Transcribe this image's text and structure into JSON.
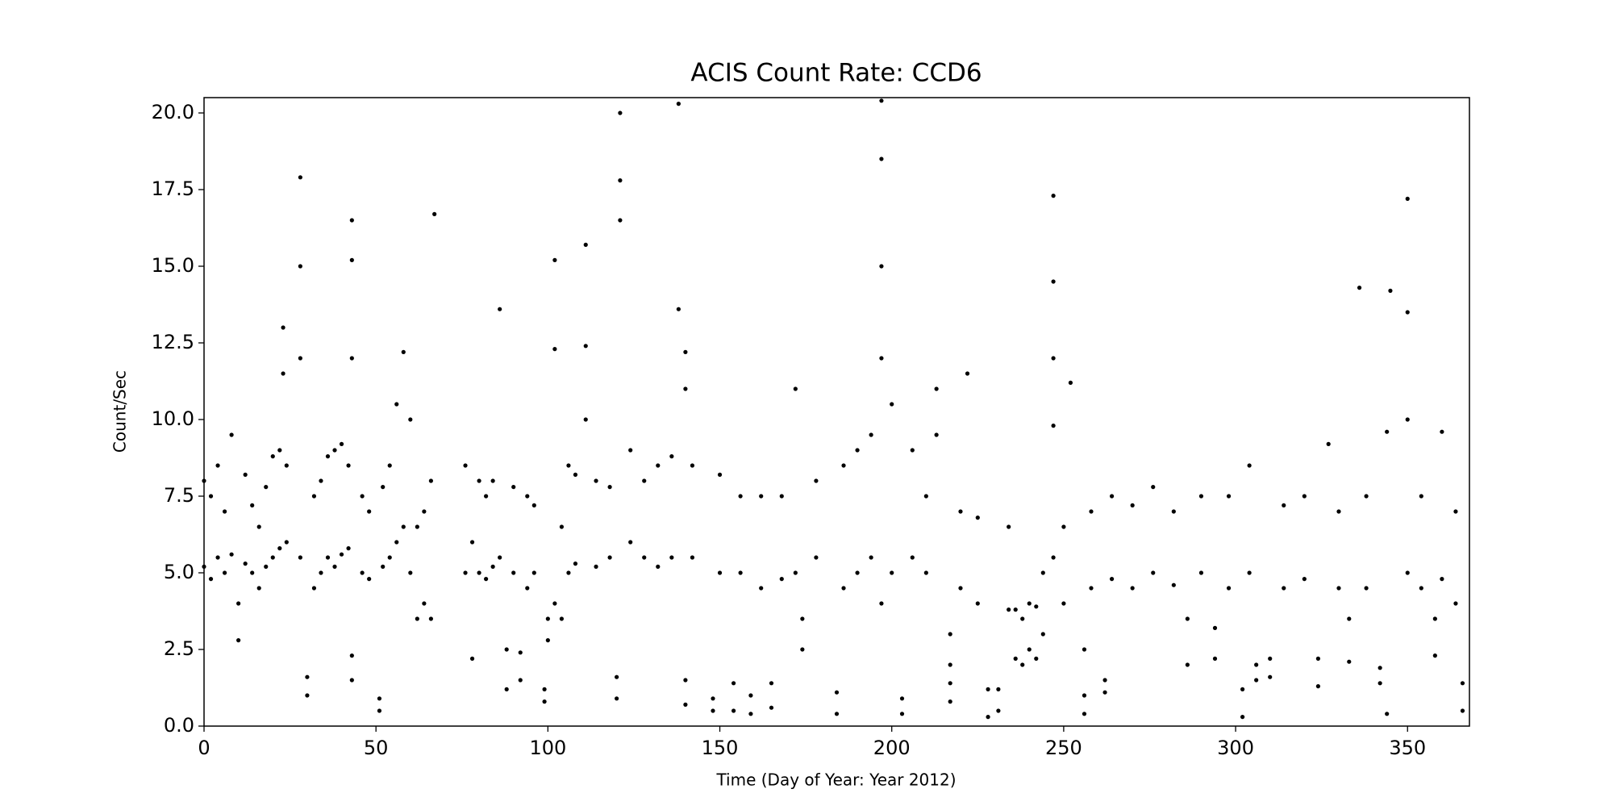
{
  "chart_data": {
    "type": "scatter",
    "title": "ACIS Count Rate: CCD6",
    "x_label": "Time (Day of Year: Year 2012)",
    "y_label": "Count/Sec",
    "color": "#000000",
    "xlim": [
      0,
      368
    ],
    "ylim": [
      0,
      20.5
    ],
    "xticks": [
      0,
      50,
      100,
      150,
      200,
      250,
      300,
      350
    ],
    "yticks": [
      {
        "value": 0,
        "label": "0.0"
      },
      2.5,
      {
        "value": 5,
        "label": "5.0"
      },
      7.5,
      {
        "value": 10,
        "label": "10.0"
      },
      12.5,
      {
        "value": 15,
        "label": "15.0"
      },
      17.5,
      {
        "value": 20,
        "label": "20.0"
      }
    ],
    "x": [
      0,
      0,
      2,
      2,
      4,
      4,
      6,
      6,
      8,
      8,
      10,
      10,
      12,
      12,
      14,
      14,
      16,
      16,
      18,
      18,
      20,
      20,
      22,
      22,
      23,
      23,
      24,
      24,
      28,
      28,
      28,
      28,
      30,
      30,
      32,
      32,
      34,
      34,
      36,
      36,
      38,
      38,
      40,
      40,
      42,
      42,
      43,
      43,
      43,
      43,
      43,
      46,
      46,
      48,
      48,
      51,
      51,
      52,
      52,
      54,
      54,
      56,
      56,
      58,
      58,
      60,
      60,
      62,
      62,
      64,
      64,
      66,
      66,
      67,
      76,
      76,
      78,
      78,
      80,
      80,
      82,
      82,
      84,
      84,
      86,
      86,
      88,
      88,
      90,
      90,
      92,
      92,
      94,
      94,
      96,
      96,
      99,
      99,
      100,
      100,
      102,
      102,
      102,
      104,
      104,
      106,
      106,
      108,
      108,
      111,
      111,
      111,
      114,
      114,
      118,
      118,
      120,
      120,
      121,
      121,
      121,
      124,
      124,
      128,
      128,
      132,
      132,
      136,
      136,
      138,
      138,
      140,
      140,
      140,
      140,
      142,
      142,
      148,
      148,
      150,
      150,
      154,
      154,
      156,
      156,
      159,
      159,
      162,
      162,
      165,
      165,
      168,
      168,
      172,
      172,
      174,
      174,
      178,
      178,
      184,
      184,
      186,
      186,
      190,
      190,
      194,
      194,
      197,
      197,
      197,
      197,
      197,
      200,
      200,
      203,
      203,
      206,
      206,
      210,
      210,
      213,
      213,
      217,
      217,
      217,
      217,
      220,
      220,
      222,
      225,
      225,
      228,
      228,
      231,
      231,
      234,
      234,
      236,
      236,
      238,
      238,
      240,
      240,
      242,
      242,
      244,
      244,
      247,
      247,
      247,
      247,
      247,
      250,
      250,
      252,
      256,
      256,
      256,
      258,
      258,
      262,
      262,
      264,
      264,
      270,
      270,
      276,
      276,
      282,
      282,
      286,
      286,
      290,
      290,
      294,
      294,
      298,
      298,
      302,
      302,
      304,
      304,
      306,
      306,
      310,
      310,
      314,
      314,
      320,
      320,
      324,
      324,
      327,
      330,
      330,
      333,
      333,
      336,
      338,
      338,
      342,
      342,
      344,
      344,
      345,
      350,
      350,
      350,
      350,
      354,
      354,
      358,
      358,
      360,
      360,
      364,
      364,
      366,
      366
    ],
    "values": [
      5.2,
      8.0,
      4.8,
      7.5,
      5.5,
      8.5,
      5.0,
      7.0,
      5.6,
      9.5,
      2.8,
      4.0,
      5.3,
      8.2,
      5.0,
      7.2,
      4.5,
      6.5,
      5.2,
      7.8,
      5.5,
      8.8,
      5.8,
      9.0,
      11.5,
      13.0,
      6.0,
      8.5,
      5.5,
      12.0,
      15.0,
      17.9,
      1.0,
      1.6,
      4.5,
      7.5,
      5.0,
      8.0,
      5.5,
      8.8,
      5.2,
      9.0,
      5.6,
      9.2,
      5.8,
      8.5,
      1.5,
      2.3,
      12.0,
      15.2,
      16.5,
      5.0,
      7.5,
      4.8,
      7.0,
      0.5,
      0.9,
      5.2,
      7.8,
      5.5,
      8.5,
      6.0,
      10.5,
      6.5,
      12.2,
      5.0,
      10.0,
      3.5,
      6.5,
      4.0,
      7.0,
      3.5,
      8.0,
      16.7,
      5.0,
      8.5,
      2.2,
      6.0,
      5.0,
      8.0,
      4.8,
      7.5,
      5.2,
      8.0,
      5.5,
      13.6,
      1.2,
      2.5,
      5.0,
      7.8,
      1.5,
      2.4,
      4.5,
      7.5,
      5.0,
      7.2,
      0.8,
      1.2,
      2.8,
      3.5,
      4.0,
      12.3,
      15.2,
      3.5,
      6.5,
      5.0,
      8.5,
      5.3,
      8.2,
      10.0,
      12.4,
      15.7,
      5.2,
      8.0,
      5.5,
      7.8,
      0.9,
      1.6,
      16.5,
      17.8,
      20.0,
      6.0,
      9.0,
      5.5,
      8.0,
      5.2,
      8.5,
      5.5,
      8.8,
      13.6,
      20.3,
      0.7,
      1.5,
      11.0,
      12.2,
      5.5,
      8.5,
      0.5,
      0.9,
      5.0,
      8.2,
      0.5,
      1.4,
      5.0,
      7.5,
      0.4,
      1.0,
      4.5,
      7.5,
      0.6,
      1.4,
      4.8,
      7.5,
      5.0,
      11.0,
      2.5,
      3.5,
      5.5,
      8.0,
      0.4,
      1.1,
      4.5,
      8.5,
      5.0,
      9.0,
      5.5,
      9.5,
      4.0,
      12.0,
      15.0,
      18.5,
      20.4,
      5.0,
      10.5,
      0.4,
      0.9,
      5.5,
      9.0,
      5.0,
      7.5,
      9.5,
      11.0,
      0.8,
      1.4,
      2.0,
      3.0,
      4.5,
      7.0,
      11.5,
      4.0,
      6.8,
      0.3,
      1.2,
      0.5,
      1.2,
      3.8,
      6.5,
      2.2,
      3.8,
      2.0,
      3.5,
      2.5,
      4.0,
      2.2,
      3.9,
      3.0,
      5.0,
      5.5,
      9.8,
      12.0,
      14.5,
      17.3,
      4.0,
      6.5,
      11.2,
      0.4,
      1.0,
      2.5,
      4.5,
      7.0,
      1.1,
      1.5,
      4.8,
      7.5,
      4.5,
      7.2,
      5.0,
      7.8,
      4.6,
      7.0,
      2.0,
      3.5,
      5.0,
      7.5,
      2.2,
      3.2,
      4.5,
      7.5,
      0.3,
      1.2,
      5.0,
      8.5,
      1.5,
      2.0,
      1.6,
      2.2,
      4.5,
      7.2,
      4.8,
      7.5,
      1.3,
      2.2,
      9.2,
      4.5,
      7.0,
      2.1,
      3.5,
      14.3,
      4.5,
      7.5,
      1.4,
      1.9,
      0.4,
      9.6,
      14.2,
      5.0,
      10.0,
      13.5,
      17.2,
      4.5,
      7.5,
      2.3,
      3.5,
      4.8,
      9.6,
      4.0,
      7.0,
      0.5,
      1.4
    ]
  }
}
